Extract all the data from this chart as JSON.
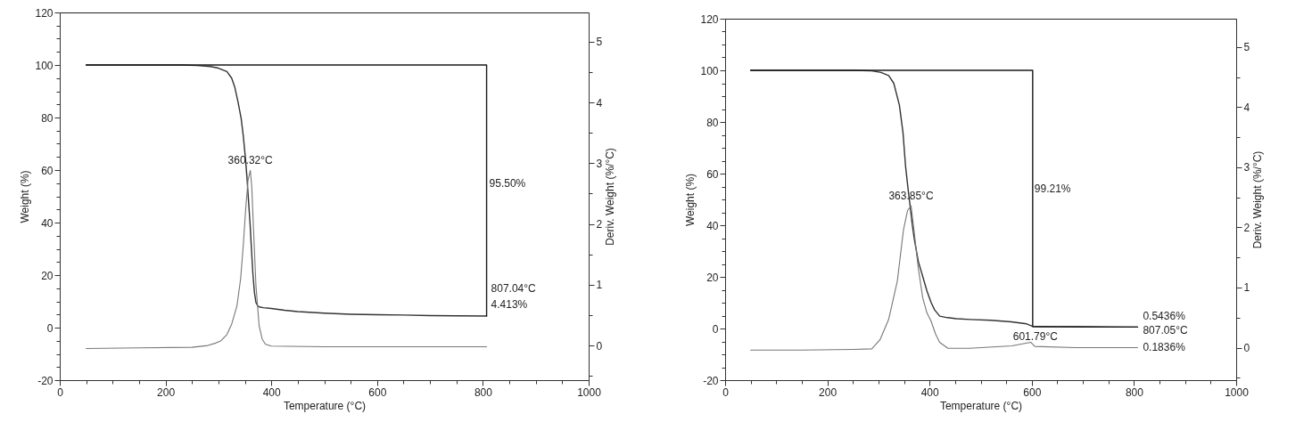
{
  "chart_data": [
    {
      "type": "line",
      "xlabel": "Temperature (°C)",
      "ylabel": "Weight (%)",
      "y2label": "Deriv. Weight (%/°C)",
      "xlim": [
        0,
        1000
      ],
      "xticks": [
        0,
        {
          "value": 50,
          "label": null
        },
        {
          "value": 100,
          "label": null
        },
        {
          "value": 150,
          "label": null
        },
        200,
        {
          "value": 250,
          "label": null
        },
        {
          "value": 300,
          "label": null
        },
        {
          "value": 350,
          "label": null
        },
        400,
        {
          "value": 450,
          "label": null
        },
        {
          "value": 500,
          "label": null
        },
        {
          "value": 550,
          "label": null
        },
        600,
        {
          "value": 650,
          "label": null
        },
        {
          "value": 700,
          "label": null
        },
        {
          "value": 750,
          "label": null
        },
        800,
        {
          "value": 850,
          "label": null
        },
        {
          "value": 900,
          "label": null
        },
        {
          "value": 950,
          "label": null
        },
        1000
      ],
      "ylim": [
        -20,
        120
      ],
      "yticks": [
        -20,
        {
          "value": -15,
          "label": null
        },
        {
          "value": -10,
          "label": null
        },
        {
          "value": -5,
          "label": null
        },
        0,
        {
          "value": 5,
          "label": null
        },
        {
          "value": 10,
          "label": null
        },
        {
          "value": 15,
          "label": null
        },
        20,
        {
          "value": 25,
          "label": null
        },
        {
          "value": 30,
          "label": null
        },
        {
          "value": 35,
          "label": null
        },
        40,
        {
          "value": 45,
          "label": null
        },
        {
          "value": 50,
          "label": null
        },
        {
          "value": 55,
          "label": null
        },
        60,
        {
          "value": 65,
          "label": null
        },
        {
          "value": 70,
          "label": null
        },
        {
          "value": 75,
          "label": null
        },
        80,
        {
          "value": 85,
          "label": null
        },
        {
          "value": 90,
          "label": null
        },
        {
          "value": 95,
          "label": null
        },
        100,
        {
          "value": 105,
          "label": null
        },
        {
          "value": 110,
          "label": null
        },
        {
          "value": 115,
          "label": null
        },
        120
      ],
      "y2lim": [
        -0.57,
        5.48
      ],
      "y2ticks": [
        {
          "value": -0.5,
          "label": null
        },
        0,
        {
          "value": 0.5,
          "label": null
        },
        1,
        {
          "value": 1.5,
          "label": null
        },
        2,
        {
          "value": 2.5,
          "label": null
        },
        3,
        {
          "value": 3.5,
          "label": null
        },
        4,
        {
          "value": 4.5,
          "label": null
        },
        5
      ],
      "series": [
        {
          "color": "#333333",
          "x": [
            50,
            150,
            230,
            260,
            285,
            300,
            316,
            325,
            331,
            337,
            343,
            347,
            351,
            354,
            357,
            360,
            362,
            365,
            368,
            371,
            374,
            377,
            385,
            400,
            425,
            450,
            500,
            550,
            600,
            650,
            700,
            750,
            807.04
          ],
          "values": [
            100,
            100,
            100,
            99.8,
            99.4,
            98.8,
            97.5,
            95,
            91.5,
            86,
            79.6,
            73,
            64.7,
            57,
            48,
            39,
            31.5,
            21,
            13.5,
            9.5,
            8.4,
            7.9,
            7.6,
            7.3,
            6.6,
            6.1,
            5.5,
            5.1,
            4.9,
            4.8,
            4.6,
            4.5,
            4.413
          ]
        },
        {
          "color": "#777777",
          "axis": "y2",
          "x": [
            50,
            150,
            250,
            280,
            295,
            305,
            316,
            325,
            335,
            342,
            347,
            352,
            356,
            360.32,
            363,
            366,
            371,
            377,
            383,
            389,
            400,
            500,
            600,
            700,
            807.04
          ],
          "values": [
            -0.05,
            -0.04,
            -0.03,
            0.0,
            0.04,
            0.08,
            0.18,
            0.35,
            0.65,
            1.1,
            1.65,
            2.3,
            2.72,
            2.88,
            2.62,
            1.98,
            0.98,
            0.32,
            0.1,
            0.02,
            -0.01,
            -0.02,
            -0.02,
            -0.02,
            -0.02
          ]
        },
        {
          "color": "#1a1a1a",
          "x": [
            50,
            807.04,
            807.04
          ],
          "values": [
            100,
            100,
            4.413
          ]
        }
      ],
      "annotations": [
        {
          "text": "360.32°C",
          "x": 360.32,
          "y": 60
        },
        {
          "text": "95.50%",
          "x": 807.04,
          "y": 55
        },
        {
          "text": "807.04°C",
          "x": 807.04,
          "y": 4.413
        },
        {
          "text": "4.413%",
          "x": 807.04,
          "y": 4.413
        }
      ]
    },
    {
      "type": "line",
      "xlabel": "Temperature (°C)",
      "ylabel": "Weight (%)",
      "y2label": "Deriv. Weight (%/°C)",
      "xlim": [
        0,
        1000
      ],
      "xticks": [
        0,
        {
          "value": 50,
          "label": null
        },
        {
          "value": 100,
          "label": null
        },
        {
          "value": 150,
          "label": null
        },
        200,
        {
          "value": 250,
          "label": null
        },
        {
          "value": 300,
          "label": null
        },
        {
          "value": 350,
          "label": null
        },
        400,
        {
          "value": 450,
          "label": null
        },
        {
          "value": 500,
          "label": null
        },
        {
          "value": 550,
          "label": null
        },
        600,
        {
          "value": 650,
          "label": null
        },
        {
          "value": 700,
          "label": null
        },
        {
          "value": 750,
          "label": null
        },
        800,
        {
          "value": 850,
          "label": null
        },
        {
          "value": 900,
          "label": null
        },
        {
          "value": 950,
          "label": null
        },
        1000
      ],
      "ylim": [
        -20,
        120
      ],
      "yticks": [
        -20,
        {
          "value": -15,
          "label": null
        },
        {
          "value": -10,
          "label": null
        },
        {
          "value": -5,
          "label": null
        },
        0,
        {
          "value": 5,
          "label": null
        },
        {
          "value": 10,
          "label": null
        },
        {
          "value": 15,
          "label": null
        },
        20,
        {
          "value": 25,
          "label": null
        },
        {
          "value": 30,
          "label": null
        },
        {
          "value": 35,
          "label": null
        },
        40,
        {
          "value": 45,
          "label": null
        },
        {
          "value": 50,
          "label": null
        },
        {
          "value": 55,
          "label": null
        },
        60,
        {
          "value": 65,
          "label": null
        },
        {
          "value": 70,
          "label": null
        },
        {
          "value": 75,
          "label": null
        },
        80,
        {
          "value": 85,
          "label": null
        },
        {
          "value": 90,
          "label": null
        },
        {
          "value": 95,
          "label": null
        },
        100,
        {
          "value": 105,
          "label": null
        },
        {
          "value": 110,
          "label": null
        },
        {
          "value": 115,
          "label": null
        },
        120
      ],
      "y2lim": [
        -0.54,
        5.47
      ],
      "y2ticks": [
        {
          "value": -0.5,
          "label": null
        },
        0,
        {
          "value": 0.5,
          "label": null
        },
        1,
        {
          "value": 1.5,
          "label": null
        },
        2,
        {
          "value": 2.5,
          "label": null
        },
        3,
        {
          "value": 3.5,
          "label": null
        },
        4,
        {
          "value": 4.5,
          "label": null
        },
        5
      ],
      "series": [
        {
          "color": "#333333",
          "x": [
            50,
            150,
            250,
            287,
            305,
            320,
            330,
            341,
            348,
            353,
            358,
            362,
            366,
            370,
            378,
            387,
            395,
            403,
            410,
            420,
            435,
            453,
            480,
            520,
            560,
            590,
            601.79,
            620,
            650,
            700,
            750,
            807.05
          ],
          "values": [
            100,
            100,
            100,
            99.8,
            99.2,
            98,
            95,
            86.5,
            76,
            63,
            54,
            47.5,
            40.5,
            34.8,
            26,
            19.9,
            14.5,
            10.1,
            7.2,
            4.8,
            4.2,
            3.8,
            3.5,
            3.2,
            2.6,
            1.8,
            0.79,
            0.7,
            0.65,
            0.6,
            0.57,
            0.5436
          ]
        },
        {
          "color": "#777777",
          "axis": "y2",
          "x": [
            50,
            150,
            250,
            287,
            303,
            320,
            337,
            349,
            357,
            363.85,
            369.5,
            378,
            386.6,
            394.8,
            403,
            411.6,
            419.7,
            436,
            478,
            561,
            598,
            606,
            685,
            807.05
          ],
          "values": [
            -0.04,
            -0.04,
            -0.03,
            -0.02,
            0.13,
            0.47,
            1.11,
            1.96,
            2.28,
            2.36,
            1.96,
            1.32,
            0.83,
            0.58,
            0.44,
            0.23,
            0.09,
            -0.01,
            -0.01,
            0.03,
            0.09,
            0.02,
            0.0,
            0.0
          ]
        },
        {
          "color": "#1a1a1a",
          "x": [
            50,
            601.79,
            601.79,
            807.05
          ],
          "values": [
            100,
            100,
            0.79,
            0.5436
          ]
        }
      ],
      "annotations": [
        {
          "text": "363.85°C",
          "x": 363.85,
          "y": 48
        },
        {
          "text": "99.21%",
          "x": 601.79,
          "y": 54
        },
        {
          "text": "601.79°C",
          "x": 601.79,
          "y": -6
        },
        {
          "text": "0.5436%",
          "x": 807.05,
          "y": 0.5436
        },
        {
          "text": "807.05°C",
          "x": 807.05,
          "y": 0.5436
        },
        {
          "text": "0.1836%",
          "x": 807.05,
          "y": -7.4
        }
      ]
    }
  ]
}
